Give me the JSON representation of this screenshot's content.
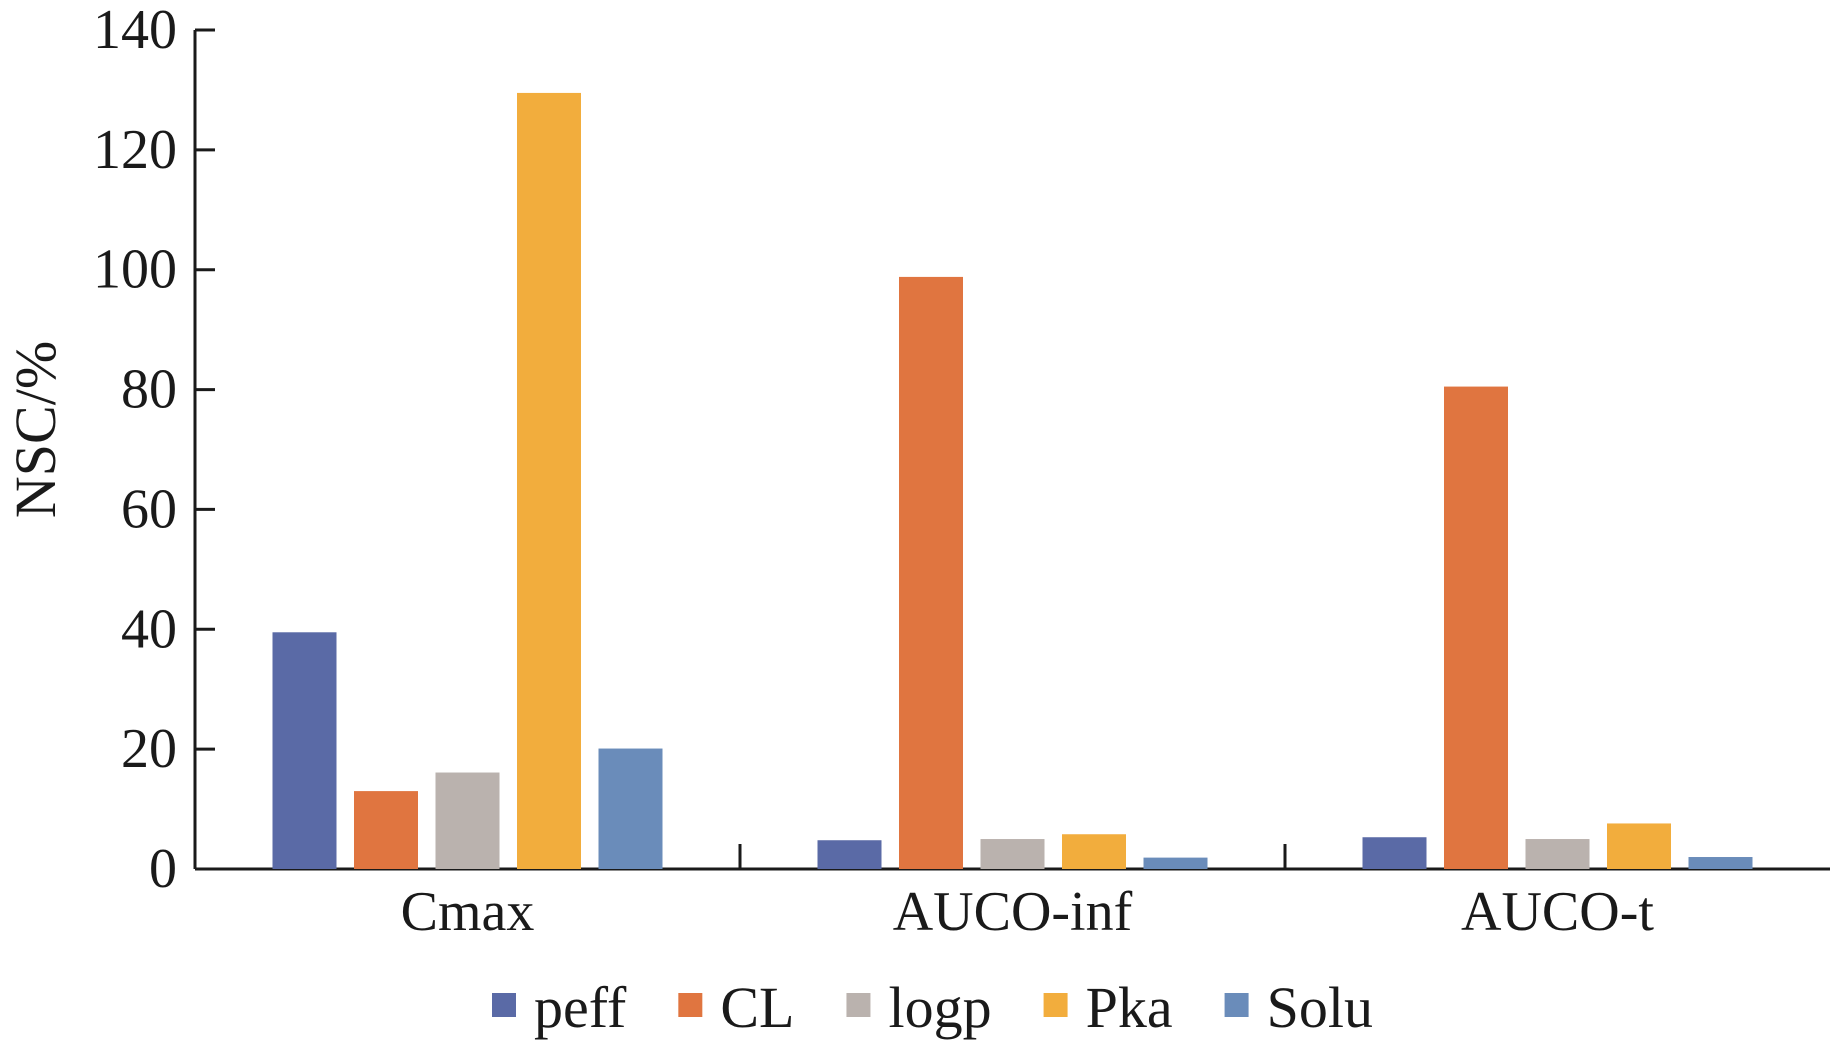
{
  "chart_data": {
    "type": "bar",
    "title": "",
    "xlabel": "",
    "ylabel": "NSC/%",
    "ylim": [
      0,
      140
    ],
    "yticks": [
      0,
      20,
      40,
      60,
      80,
      100,
      120,
      140
    ],
    "categories": [
      "Cmax",
      "AUCO-inf",
      "AUCO-t"
    ],
    "series": [
      {
        "name": "peff",
        "color": "#5a6aa6",
        "values": [
          39.5,
          4.8,
          5.3
        ]
      },
      {
        "name": "CL",
        "color": "#e07540",
        "values": [
          13.0,
          98.8,
          80.5
        ]
      },
      {
        "name": "logp",
        "color": "#bab2ae",
        "values": [
          16.1,
          5.0,
          5.0
        ]
      },
      {
        "name": "Pka",
        "color": "#f2ad3d",
        "values": [
          129.5,
          5.8,
          7.6
        ]
      },
      {
        "name": "Solu",
        "color": "#6a8cba",
        "values": [
          20.1,
          1.9,
          2.0
        ]
      }
    ],
    "grid": false,
    "legend_position": "bottom"
  }
}
